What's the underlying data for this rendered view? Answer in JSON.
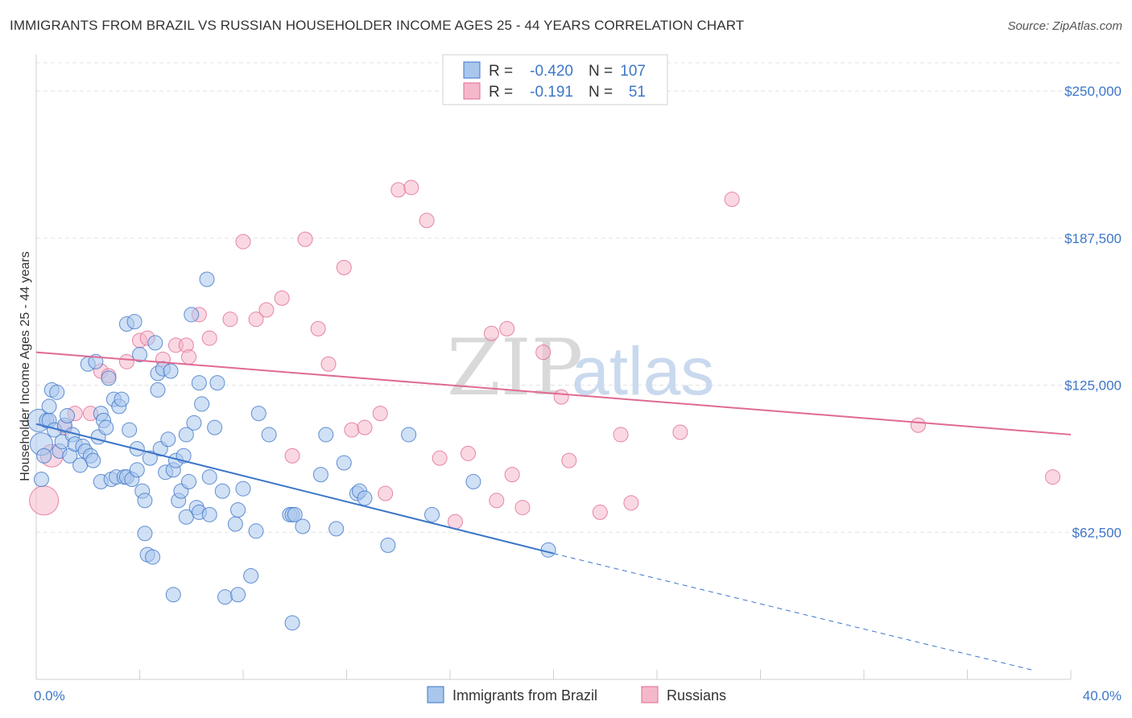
{
  "title": "IMMIGRANTS FROM BRAZIL VS RUSSIAN HOUSEHOLDER INCOME AGES 25 - 44 YEARS CORRELATION CHART",
  "source": "Source: ZipAtlas.com",
  "watermark": {
    "part1": "ZIP",
    "part2": "atlas"
  },
  "colors": {
    "blue": "#3d76c8",
    "blue_fill": "#a9c6ec",
    "pink": "#e06a93",
    "pink_fill": "#f5b8cb"
  },
  "legend": {
    "r_label": "R =",
    "n_label": "N =",
    "rows": [
      {
        "r": "-0.420",
        "n": "107"
      },
      {
        "r": "-0.191",
        "n": "51"
      }
    ]
  },
  "chart_data": {
    "type": "scatter",
    "title": "IMMIGRANTS FROM BRAZIL VS RUSSIAN HOUSEHOLDER INCOME AGES 25 - 44 YEARS CORRELATION CHART",
    "xlabel": "",
    "ylabel": "Householder Income Ages 25 - 44 years",
    "xlim": [
      0,
      40
    ],
    "ylim": [
      0,
      262000
    ],
    "x_tick_labels": {
      "left": "0.0%",
      "right": "40.0%"
    },
    "y_ticks": [
      62500,
      125000,
      187500,
      250000
    ],
    "y_tick_labels": [
      "$62,500",
      "$125,000",
      "$187,500",
      "$250,000"
    ],
    "series": [
      {
        "name": "Immigrants from Brazil",
        "color": "blue",
        "trend": {
          "x0": 0,
          "y0": 108500,
          "x1": 20,
          "y1": 53500,
          "dash_to_x": 38.5,
          "dash_to_y": 4000
        },
        "points": [
          [
            0.1,
            110000
          ],
          [
            0.2,
            100000
          ],
          [
            0.2,
            85000
          ],
          [
            0.3,
            95000
          ],
          [
            0.4,
            110000
          ],
          [
            0.5,
            116000
          ],
          [
            0.5,
            110000
          ],
          [
            0.6,
            123000
          ],
          [
            0.7,
            106000
          ],
          [
            0.8,
            122000
          ],
          [
            0.9,
            97000
          ],
          [
            1.0,
            101000
          ],
          [
            1.1,
            108000
          ],
          [
            1.2,
            112000
          ],
          [
            1.3,
            95000
          ],
          [
            1.4,
            104000
          ],
          [
            1.5,
            100000
          ],
          [
            1.7,
            91000
          ],
          [
            1.8,
            99000
          ],
          [
            1.9,
            97000
          ],
          [
            2.0,
            134000
          ],
          [
            2.1,
            95000
          ],
          [
            2.2,
            93000
          ],
          [
            2.3,
            135000
          ],
          [
            2.4,
            103000
          ],
          [
            2.5,
            113000
          ],
          [
            2.5,
            84000
          ],
          [
            2.6,
            110000
          ],
          [
            2.7,
            107000
          ],
          [
            2.8,
            128000
          ],
          [
            2.9,
            85000
          ],
          [
            3.0,
            119000
          ],
          [
            3.1,
            86000
          ],
          [
            3.2,
            116000
          ],
          [
            3.3,
            119000
          ],
          [
            3.4,
            86000
          ],
          [
            3.5,
            86000
          ],
          [
            3.5,
            151000
          ],
          [
            3.6,
            106000
          ],
          [
            3.7,
            85000
          ],
          [
            3.8,
            152000
          ],
          [
            3.9,
            98000
          ],
          [
            3.9,
            89000
          ],
          [
            4.0,
            138000
          ],
          [
            4.1,
            80000
          ],
          [
            4.2,
            76000
          ],
          [
            4.2,
            62000
          ],
          [
            4.3,
            53000
          ],
          [
            4.4,
            94000
          ],
          [
            4.5,
            52000
          ],
          [
            4.6,
            143000
          ],
          [
            4.7,
            123000
          ],
          [
            4.7,
            130000
          ],
          [
            4.8,
            98000
          ],
          [
            4.9,
            132000
          ],
          [
            5.0,
            88000
          ],
          [
            5.1,
            102000
          ],
          [
            5.2,
            131000
          ],
          [
            5.3,
            89000
          ],
          [
            5.3,
            36000
          ],
          [
            5.4,
            93000
          ],
          [
            5.5,
            76000
          ],
          [
            5.6,
            80000
          ],
          [
            5.7,
            95000
          ],
          [
            5.8,
            104000
          ],
          [
            5.8,
            69000
          ],
          [
            5.9,
            84000
          ],
          [
            6.0,
            155000
          ],
          [
            6.1,
            109000
          ],
          [
            6.2,
            73000
          ],
          [
            6.3,
            71000
          ],
          [
            6.3,
            126000
          ],
          [
            6.4,
            117000
          ],
          [
            6.6,
            170000
          ],
          [
            6.7,
            70000
          ],
          [
            6.7,
            86000
          ],
          [
            6.9,
            107000
          ],
          [
            7.0,
            126000
          ],
          [
            7.2,
            80000
          ],
          [
            7.3,
            35000
          ],
          [
            7.7,
            66000
          ],
          [
            7.8,
            72000
          ],
          [
            7.8,
            36000
          ],
          [
            8.0,
            81000
          ],
          [
            8.3,
            44000
          ],
          [
            8.5,
            63000
          ],
          [
            8.6,
            113000
          ],
          [
            9.0,
            104000
          ],
          [
            9.8,
            70000
          ],
          [
            9.9,
            24000
          ],
          [
            9.9,
            70000
          ],
          [
            10.0,
            70000
          ],
          [
            10.3,
            65000
          ],
          [
            11.0,
            87000
          ],
          [
            11.2,
            104000
          ],
          [
            11.6,
            64000
          ],
          [
            11.9,
            92000
          ],
          [
            12.4,
            79000
          ],
          [
            12.5,
            80000
          ],
          [
            12.7,
            77000
          ],
          [
            13.6,
            57000
          ],
          [
            14.4,
            104000
          ],
          [
            15.3,
            70000
          ],
          [
            16.9,
            84000
          ],
          [
            19.8,
            55000
          ]
        ]
      },
      {
        "name": "Russians",
        "color": "pink",
        "trend": {
          "x0": 0,
          "y0": 139000,
          "x1": 40,
          "y1": 104000
        },
        "points": [
          [
            0.3,
            76000
          ],
          [
            0.6,
            95000
          ],
          [
            1.1,
            107000
          ],
          [
            1.5,
            113000
          ],
          [
            2.1,
            113000
          ],
          [
            2.5,
            131000
          ],
          [
            2.8,
            129000
          ],
          [
            3.5,
            135000
          ],
          [
            4.0,
            144000
          ],
          [
            4.3,
            145000
          ],
          [
            4.9,
            136000
          ],
          [
            5.4,
            142000
          ],
          [
            5.8,
            142000
          ],
          [
            5.9,
            137000
          ],
          [
            6.3,
            155000
          ],
          [
            6.7,
            145000
          ],
          [
            7.5,
            153000
          ],
          [
            8.0,
            186000
          ],
          [
            8.5,
            153000
          ],
          [
            8.9,
            157000
          ],
          [
            9.5,
            162000
          ],
          [
            9.9,
            95000
          ],
          [
            10.4,
            187000
          ],
          [
            10.9,
            149000
          ],
          [
            11.3,
            134000
          ],
          [
            11.9,
            175000
          ],
          [
            12.2,
            106000
          ],
          [
            12.7,
            107000
          ],
          [
            13.3,
            113000
          ],
          [
            13.5,
            79000
          ],
          [
            14.0,
            208000
          ],
          [
            14.5,
            209000
          ],
          [
            15.1,
            195000
          ],
          [
            15.6,
            94000
          ],
          [
            16.2,
            67000
          ],
          [
            16.7,
            96000
          ],
          [
            17.6,
            147000
          ],
          [
            18.2,
            149000
          ],
          [
            17.8,
            76000
          ],
          [
            18.4,
            87000
          ],
          [
            18.8,
            73000
          ],
          [
            19.6,
            139000
          ],
          [
            20.3,
            120000
          ],
          [
            20.6,
            93000
          ],
          [
            21.8,
            71000
          ],
          [
            22.6,
            104000
          ],
          [
            23.0,
            75000
          ],
          [
            24.9,
            105000
          ],
          [
            26.9,
            204000
          ],
          [
            34.1,
            108000
          ],
          [
            39.3,
            86000
          ]
        ]
      }
    ]
  }
}
